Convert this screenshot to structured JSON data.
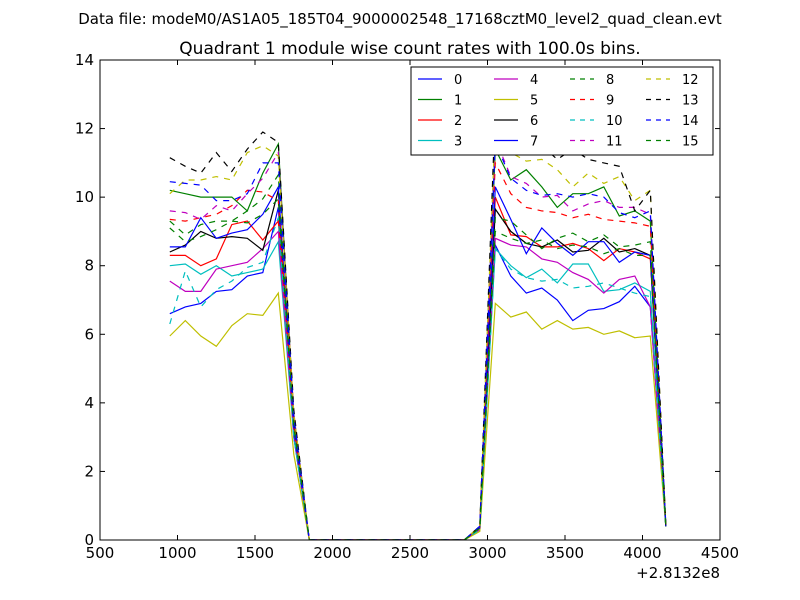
{
  "chart_data": {
    "type": "line",
    "suptitle": "Data file: modeM0/AS1A05_185T04_9000002548_17168cztM0_level2_quad_clean.evt",
    "title": "Quadrant 1 module wise count rates with 100.0s bins.",
    "xlabel": "",
    "ylabel": "",
    "xlim": [
      500,
      4500
    ],
    "ylim": [
      0,
      14
    ],
    "x_offset_label": "+2.8132e8",
    "xticks": [
      500,
      1000,
      1500,
      2000,
      2500,
      3000,
      3500,
      4000,
      4500
    ],
    "yticks": [
      0,
      2,
      4,
      6,
      8,
      10,
      12,
      14
    ],
    "legend_position": "top-right",
    "legend_columns": 4,
    "x": [
      950,
      1050,
      1150,
      1250,
      1350,
      1450,
      1550,
      1650,
      1750,
      1850,
      1950,
      2050,
      2150,
      2250,
      2350,
      2450,
      2550,
      2650,
      2750,
      2850,
      2950,
      3050,
      3150,
      3250,
      3350,
      3450,
      3550,
      3650,
      3750,
      3850,
      3950,
      4050,
      4150
    ],
    "series": [
      {
        "name": "0",
        "color": "#0000ff",
        "dash": "solid",
        "values": [
          6.6,
          6.8,
          6.9,
          7.25,
          7.3,
          7.7,
          7.8,
          9.7,
          3.0,
          0,
          0,
          0,
          0,
          0,
          0,
          0,
          0,
          0,
          0,
          0,
          0.3,
          8.6,
          7.7,
          7.2,
          7.35,
          7.0,
          6.4,
          6.7,
          6.75,
          6.95,
          7.4,
          6.8,
          0.4
        ]
      },
      {
        "name": "1",
        "color": "#008000",
        "dash": "solid",
        "values": [
          10.2,
          10.1,
          10.0,
          10.0,
          10.0,
          9.6,
          10.7,
          11.55,
          3.6,
          0,
          0,
          0,
          0,
          0,
          0,
          0,
          0,
          0,
          0,
          0,
          0.4,
          11.4,
          10.5,
          10.8,
          10.3,
          9.7,
          10.1,
          10.1,
          10.3,
          9.45,
          9.6,
          9.3,
          0.45
        ]
      },
      {
        "name": "2",
        "color": "#ff0000",
        "dash": "solid",
        "values": [
          8.3,
          8.3,
          8.0,
          8.2,
          9.2,
          9.3,
          8.75,
          9.3,
          3.2,
          0,
          0,
          0,
          0,
          0,
          0,
          0,
          0,
          0,
          0,
          0,
          0.35,
          10.0,
          8.9,
          8.85,
          8.55,
          8.55,
          8.65,
          8.5,
          8.15,
          8.5,
          8.4,
          8.2,
          0.4
        ]
      },
      {
        "name": "3",
        "color": "#00bfbf",
        "dash": "solid",
        "values": [
          8.0,
          8.05,
          7.75,
          8.0,
          7.7,
          7.8,
          7.9,
          8.7,
          3.0,
          0,
          0,
          0,
          0,
          0,
          0,
          0,
          0,
          0,
          0,
          0,
          0.3,
          8.5,
          8.0,
          7.65,
          7.9,
          7.5,
          8.05,
          8.05,
          7.25,
          7.3,
          7.5,
          7.25,
          0.4
        ]
      },
      {
        "name": "4",
        "color": "#bf00bf",
        "dash": "solid",
        "values": [
          7.55,
          7.25,
          7.25,
          7.9,
          8.0,
          8.1,
          8.5,
          9.0,
          3.1,
          0,
          0,
          0,
          0,
          0,
          0,
          0,
          0,
          0,
          0,
          0,
          0.3,
          8.8,
          8.6,
          8.55,
          8.2,
          8.1,
          7.8,
          7.6,
          7.2,
          7.6,
          7.7,
          6.8,
          0.4
        ]
      },
      {
        "name": "5",
        "color": "#bfbf00",
        "dash": "solid",
        "values": [
          5.95,
          6.4,
          5.95,
          5.65,
          6.25,
          6.6,
          6.55,
          7.2,
          2.5,
          0,
          0,
          0,
          0,
          0,
          0,
          0,
          0,
          0,
          0,
          0,
          0.25,
          6.9,
          6.5,
          6.65,
          6.15,
          6.4,
          6.15,
          6.2,
          6.0,
          6.1,
          5.9,
          5.95,
          0.4
        ]
      },
      {
        "name": "6",
        "color": "#000000",
        "dash": "solid",
        "values": [
          8.4,
          8.6,
          9.0,
          8.8,
          8.85,
          8.8,
          8.45,
          10.2,
          3.4,
          0,
          0,
          0,
          0,
          0,
          0,
          0,
          0,
          0,
          0,
          0,
          0.35,
          9.65,
          9.0,
          8.65,
          8.55,
          8.75,
          8.4,
          8.45,
          8.8,
          8.4,
          8.5,
          8.3,
          0.4
        ]
      },
      {
        "name": "7",
        "color": "#0000ff",
        "dash": "solid",
        "values": [
          8.55,
          8.55,
          9.4,
          8.8,
          8.95,
          9.05,
          9.5,
          10.3,
          3.2,
          0,
          0,
          0,
          0,
          0,
          0,
          0,
          0,
          0,
          0,
          0,
          0.35,
          10.3,
          9.35,
          8.35,
          9.1,
          8.65,
          8.3,
          8.7,
          8.7,
          8.1,
          8.4,
          8.3,
          0.4
        ]
      },
      {
        "name": "8",
        "color": "#008000",
        "dash": "dashed",
        "values": [
          9.3,
          8.9,
          9.2,
          9.3,
          9.3,
          9.6,
          9.95,
          10.65,
          3.5,
          0,
          0,
          0,
          0,
          0,
          0,
          0,
          0,
          0,
          0,
          0,
          0.35,
          9.4,
          9.3,
          8.9,
          8.5,
          8.8,
          8.95,
          8.7,
          8.9,
          8.55,
          8.6,
          8.7,
          0.4
        ]
      },
      {
        "name": "9",
        "color": "#ff0000",
        "dash": "dashed",
        "values": [
          9.35,
          9.3,
          9.4,
          9.5,
          9.75,
          10.2,
          10.15,
          9.9,
          3.3,
          0,
          0,
          0,
          0,
          0,
          0,
          0,
          0,
          0,
          0,
          0,
          0.35,
          11.0,
          10.1,
          9.7,
          9.6,
          9.55,
          9.4,
          9.5,
          9.35,
          9.3,
          9.25,
          9.15,
          0.4
        ]
      },
      {
        "name": "10",
        "color": "#00bfbf",
        "dash": "dashed",
        "values": [
          6.3,
          7.85,
          6.8,
          7.3,
          7.55,
          7.95,
          8.1,
          9.4,
          3.1,
          0,
          0,
          0,
          0,
          0,
          0,
          0,
          0,
          0,
          0,
          0,
          0.3,
          8.5,
          7.9,
          7.65,
          7.55,
          7.6,
          7.35,
          7.4,
          7.5,
          7.35,
          7.2,
          7.1,
          0.4
        ]
      },
      {
        "name": "11",
        "color": "#bf00bf",
        "dash": "dashed",
        "values": [
          9.6,
          9.55,
          9.35,
          9.75,
          9.6,
          10.1,
          10.55,
          11.3,
          3.7,
          0,
          0,
          0,
          0,
          0,
          0,
          0,
          0,
          0,
          0,
          0,
          0.4,
          11.7,
          10.6,
          10.4,
          10.0,
          10.05,
          9.6,
          9.8,
          9.9,
          9.7,
          9.7,
          9.5,
          0.45
        ]
      },
      {
        "name": "12",
        "color": "#bfbf00",
        "dash": "dashed",
        "values": [
          10.1,
          10.5,
          10.5,
          10.6,
          10.5,
          11.3,
          11.5,
          11.2,
          3.7,
          0,
          0,
          0,
          0,
          0,
          0,
          0,
          0,
          0,
          0,
          0,
          0.4,
          12.2,
          11.3,
          11.05,
          11.1,
          10.8,
          10.3,
          10.7,
          10.4,
          10.6,
          9.9,
          10.2,
          0.45
        ]
      },
      {
        "name": "13",
        "color": "#000000",
        "dash": "dashed",
        "values": [
          11.15,
          10.9,
          10.7,
          11.3,
          10.75,
          11.4,
          11.9,
          11.6,
          3.8,
          0,
          0,
          0,
          0,
          0,
          0,
          0,
          0,
          0,
          0,
          0,
          0.4,
          12.6,
          11.3,
          11.8,
          11.5,
          11.1,
          11.4,
          11.1,
          11.0,
          10.9,
          9.6,
          10.2,
          0.45
        ]
      },
      {
        "name": "14",
        "color": "#0000ff",
        "dash": "dashed",
        "values": [
          10.45,
          10.4,
          10.35,
          9.9,
          9.9,
          10.1,
          11.0,
          11.0,
          3.6,
          0,
          0,
          0,
          0,
          0,
          0,
          0,
          0,
          0,
          0,
          0,
          0.4,
          11.6,
          10.55,
          10.2,
          10.05,
          10.1,
          10.0,
          10.1,
          10.0,
          9.55,
          9.4,
          9.6,
          0.45
        ]
      },
      {
        "name": "15",
        "color": "#008000",
        "dash": "dashed",
        "values": [
          9.1,
          8.7,
          8.85,
          9.05,
          9.3,
          9.25,
          9.5,
          9.95,
          3.3,
          0,
          0,
          0,
          0,
          0,
          0,
          0,
          0,
          0,
          0,
          0,
          0.35,
          9.0,
          8.8,
          8.65,
          8.75,
          8.5,
          8.6,
          8.55,
          8.35,
          8.5,
          8.3,
          8.3,
          0.4
        ]
      }
    ]
  }
}
